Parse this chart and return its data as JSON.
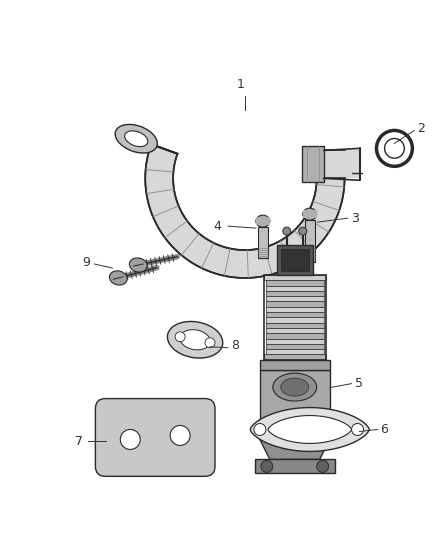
{
  "background_color": "#ffffff",
  "line_color": "#2a2a2a",
  "label_color": "#333333",
  "figsize": [
    4.38,
    5.33
  ],
  "dpi": 100,
  "tube_fill": "#d8d8d8",
  "tube_dark": "#aaaaaa",
  "valve_fill": "#c8c8c8",
  "valve_dark": "#888888",
  "gasket_fill": "#e0e0e0",
  "plate_fill": "#c8c8c8",
  "bolt_fill": "#b8b8b8",
  "oring_fill": "#d0d0d0"
}
